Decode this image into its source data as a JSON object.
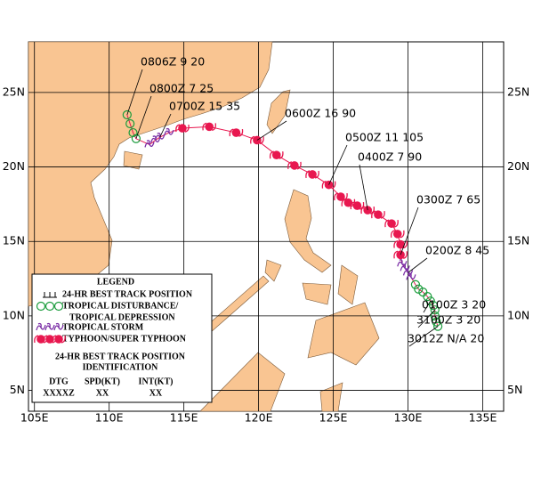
{
  "map": {
    "lonlim": [
      104.6,
      136.4
    ],
    "latlim": [
      3.6,
      28.4
    ],
    "lonticks": [
      {
        "value": 105,
        "label": "105E"
      },
      {
        "value": 110,
        "label": "110E"
      },
      {
        "value": 115,
        "label": "115E"
      },
      {
        "value": 120,
        "label": "120E"
      },
      {
        "value": 125,
        "label": "125E"
      },
      {
        "value": 130,
        "label": "130E"
      },
      {
        "value": 135,
        "label": "135E"
      }
    ],
    "latticks": [
      {
        "value": 5,
        "label": "5N"
      },
      {
        "value": 10,
        "label": "10N"
      },
      {
        "value": 15,
        "label": "15N"
      },
      {
        "value": 20,
        "label": "20N"
      },
      {
        "value": 25,
        "label": "25N"
      }
    ],
    "track": {
      "color": "#e8174f",
      "points": [
        [
          132.0,
          9.3,
          1
        ],
        [
          131.9,
          9.6,
          1
        ],
        [
          131.8,
          10.0,
          1
        ],
        [
          131.8,
          10.4,
          1
        ],
        [
          131.7,
          10.7,
          1
        ],
        [
          131.5,
          11.0,
          1
        ],
        [
          131.3,
          11.3,
          1
        ],
        [
          131.0,
          11.6,
          1
        ],
        [
          130.7,
          11.8,
          1
        ],
        [
          130.5,
          12.1,
          1
        ],
        [
          130.2,
          12.6,
          2
        ],
        [
          130.0,
          12.9,
          2
        ],
        [
          129.8,
          13.2,
          2
        ],
        [
          129.6,
          13.5,
          2
        ],
        [
          129.5,
          14.1,
          3
        ],
        [
          129.5,
          14.8,
          3
        ],
        [
          129.3,
          15.5,
          3
        ],
        [
          128.9,
          16.2,
          3
        ],
        [
          128.0,
          16.8,
          3
        ],
        [
          127.3,
          17.1,
          3
        ],
        [
          126.6,
          17.4,
          3
        ],
        [
          126.0,
          17.6,
          3
        ],
        [
          125.5,
          18.0,
          3
        ],
        [
          124.7,
          18.8,
          3
        ],
        [
          123.6,
          19.5,
          3
        ],
        [
          122.4,
          20.1,
          3
        ],
        [
          121.2,
          20.8,
          3
        ],
        [
          119.9,
          21.8,
          3
        ],
        [
          118.5,
          22.3,
          3
        ],
        [
          116.7,
          22.7,
          3
        ],
        [
          114.9,
          22.6,
          3
        ],
        [
          114.0,
          22.3,
          2
        ],
        [
          113.4,
          22.0,
          2
        ],
        [
          113.1,
          21.8,
          2
        ],
        [
          112.7,
          21.5,
          2
        ],
        [
          111.8,
          21.9,
          1
        ],
        [
          111.6,
          22.3,
          1
        ],
        [
          111.4,
          22.9,
          1
        ],
        [
          111.2,
          23.5,
          1
        ]
      ]
    },
    "position_labels": [
      "0806Z  9  20",
      "0800Z  7  25",
      "0700Z  15  35",
      "0600Z  16  90",
      "0500Z  11  105",
      "0400Z  7  90",
      "0300Z  7  65",
      "0200Z  8  45",
      "0100Z  3  20",
      "3100Z  3  20",
      "3012Z  N/A  20"
    ],
    "legend": {
      "title": "LEGEND",
      "items": [
        {
          "label": "24-HR BEST TRACK POSITION",
          "color": "#000000"
        },
        {
          "label": "TROPICAL DISTURBANCE/",
          "label2": "TROPICAL DEPRESSION",
          "color": "#1a9c3c"
        },
        {
          "label": "TROPICAL STORM",
          "color": "#7b2fa6"
        },
        {
          "label": "TYPHOON/SUPER TYPHOON",
          "color": "#e8174f"
        }
      ],
      "id_title": "24-HR BEST TRACK POSITION",
      "id_title2": "IDENTIFICATION",
      "columns": [
        "DTG",
        "SPD(KT)",
        "INT(KT)"
      ],
      "formats": [
        "XXXXZ",
        "XX",
        "XX"
      ]
    }
  }
}
